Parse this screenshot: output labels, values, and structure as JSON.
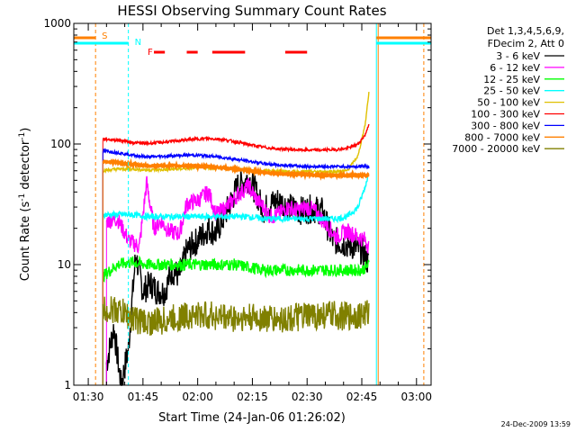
{
  "chart_data": {
    "type": "line",
    "title": "HESSI Observing Summary Count Rates",
    "xlabel": "Start Time (24-Jan-06 01:26:02)",
    "ylabel": "Count Rate (s",
    "ylabel_sup1": "-1",
    "ylabel_mid": " detector",
    "ylabel_sup2": "-1",
    "ylabel_end": ")",
    "yscale": "log",
    "ylim": [
      1,
      1000
    ],
    "xlim": [
      "01:26:02",
      "03:04:00"
    ],
    "xticks": [
      "01:30",
      "01:45",
      "02:00",
      "02:15",
      "02:30",
      "02:45",
      "03:00"
    ],
    "yticks": [
      "1",
      "10",
      "100",
      "1000"
    ],
    "grid": false,
    "legend_header": [
      "Det 1,3,4,5,6,9,",
      "FDecim 2, Att 0"
    ],
    "legend_position": "right",
    "footer_stamp": "24-Dec-2009 13:59",
    "flags": [
      {
        "label": "S",
        "color": "#ff8000",
        "time": "01:32"
      },
      {
        "label": "N",
        "color": "#00ffff",
        "time": "01:41"
      },
      {
        "label": "F",
        "color": "#ff0000",
        "time": "01:47"
      }
    ],
    "flare_intervals": [
      [
        "01:48",
        "01:51"
      ],
      [
        "01:57",
        "02:00"
      ],
      [
        "02:04",
        "02:13"
      ],
      [
        "02:24",
        "02:30"
      ]
    ],
    "series": [
      {
        "name": "3 - 6 keV",
        "color": "#000000",
        "points": [
          [
            "01:35",
            1.5
          ],
          [
            "01:37",
            3
          ],
          [
            "01:39",
            1.0
          ],
          [
            "01:41",
            2
          ],
          [
            "01:43",
            12
          ],
          [
            "01:45",
            6
          ],
          [
            "01:47",
            7
          ],
          [
            "01:49",
            6
          ],
          [
            "01:51",
            6
          ],
          [
            "01:53",
            9
          ],
          [
            "01:55",
            8
          ],
          [
            "01:57",
            13
          ],
          [
            "02:00",
            16
          ],
          [
            "02:03",
            20
          ],
          [
            "02:05",
            18
          ],
          [
            "02:08",
            28
          ],
          [
            "02:11",
            45
          ],
          [
            "02:14",
            52
          ],
          [
            "02:16",
            40
          ],
          [
            "02:18",
            28
          ],
          [
            "02:20",
            32
          ],
          [
            "02:22",
            34
          ],
          [
            "02:25",
            30
          ],
          [
            "02:28",
            28
          ],
          [
            "02:31",
            29
          ],
          [
            "02:34",
            28
          ],
          [
            "02:37",
            16
          ],
          [
            "02:40",
            15
          ],
          [
            "02:43",
            14
          ],
          [
            "02:45",
            13
          ],
          [
            "02:47",
            10
          ]
        ]
      },
      {
        "name": "6 - 12 keV",
        "color": "#ff00ff",
        "points": [
          [
            "01:35",
            23
          ],
          [
            "01:38",
            24
          ],
          [
            "01:41",
            16
          ],
          [
            "01:44",
            14
          ],
          [
            "01:46",
            48
          ],
          [
            "01:48",
            20
          ],
          [
            "01:50",
            23
          ],
          [
            "01:52",
            19
          ],
          [
            "01:55",
            18
          ],
          [
            "01:57",
            32
          ],
          [
            "02:00",
            34
          ],
          [
            "02:03",
            40
          ],
          [
            "02:05",
            26
          ],
          [
            "02:08",
            30
          ],
          [
            "02:11",
            38
          ],
          [
            "02:14",
            45
          ],
          [
            "02:16",
            35
          ],
          [
            "02:18",
            30
          ],
          [
            "02:20",
            25
          ],
          [
            "02:22",
            26
          ],
          [
            "02:25",
            30
          ],
          [
            "02:27",
            28
          ],
          [
            "02:30",
            30
          ],
          [
            "02:32",
            28
          ],
          [
            "02:35",
            22
          ],
          [
            "02:38",
            17
          ],
          [
            "02:41",
            19
          ],
          [
            "02:44",
            17
          ],
          [
            "02:46",
            16
          ],
          [
            "02:47",
            14
          ]
        ]
      },
      {
        "name": "12 - 25 keV",
        "color": "#00ff00",
        "points": [
          [
            "01:34",
            8
          ],
          [
            "01:38",
            10
          ],
          [
            "01:42",
            10.5
          ],
          [
            "01:46",
            10
          ],
          [
            "01:50",
            10
          ],
          [
            "01:54",
            10
          ],
          [
            "01:58",
            10
          ],
          [
            "02:02",
            10
          ],
          [
            "02:06",
            10
          ],
          [
            "02:10",
            10
          ],
          [
            "02:14",
            9.5
          ],
          [
            "02:18",
            9
          ],
          [
            "02:22",
            9
          ],
          [
            "02:26",
            9
          ],
          [
            "02:30",
            9
          ],
          [
            "02:34",
            9
          ],
          [
            "02:38",
            9
          ],
          [
            "02:42",
            9
          ],
          [
            "02:45",
            9
          ],
          [
            "02:47",
            10
          ]
        ]
      },
      {
        "name": "25 - 50 keV",
        "color": "#00ffff",
        "points": [
          [
            "01:34",
            26
          ],
          [
            "01:38",
            26
          ],
          [
            "01:42",
            26
          ],
          [
            "01:46",
            25
          ],
          [
            "01:50",
            25
          ],
          [
            "01:54",
            25
          ],
          [
            "01:58",
            25
          ],
          [
            "02:02",
            25
          ],
          [
            "02:06",
            25
          ],
          [
            "02:10",
            25
          ],
          [
            "02:14",
            25
          ],
          [
            "02:18",
            24
          ],
          [
            "02:22",
            24
          ],
          [
            "02:26",
            24
          ],
          [
            "02:30",
            24
          ],
          [
            "02:34",
            24
          ],
          [
            "02:38",
            24
          ],
          [
            "02:41",
            25
          ],
          [
            "02:44",
            30
          ],
          [
            "02:46",
            45
          ],
          [
            "02:47",
            60
          ]
        ]
      },
      {
        "name": "50 - 100 keV",
        "color": "#e0c000",
        "points": [
          [
            "01:34",
            60
          ],
          [
            "01:38",
            62
          ],
          [
            "01:42",
            62
          ],
          [
            "01:46",
            61
          ],
          [
            "01:50",
            61
          ],
          [
            "01:54",
            62
          ],
          [
            "01:58",
            63
          ],
          [
            "02:02",
            64
          ],
          [
            "02:06",
            63
          ],
          [
            "02:10",
            62
          ],
          [
            "02:14",
            61
          ],
          [
            "02:18",
            60
          ],
          [
            "02:22",
            60
          ],
          [
            "02:26",
            59
          ],
          [
            "02:30",
            59
          ],
          [
            "02:34",
            59
          ],
          [
            "02:38",
            59
          ],
          [
            "02:41",
            60
          ],
          [
            "02:44",
            80
          ],
          [
            "02:46",
            150
          ],
          [
            "02:47",
            280
          ]
        ]
      },
      {
        "name": "100 - 300 keV",
        "color": "#ff0000",
        "points": [
          [
            "01:34",
            110
          ],
          [
            "01:38",
            108
          ],
          [
            "01:42",
            103
          ],
          [
            "01:46",
            101
          ],
          [
            "01:50",
            103
          ],
          [
            "01:54",
            106
          ],
          [
            "01:58",
            109
          ],
          [
            "02:02",
            111
          ],
          [
            "02:06",
            110
          ],
          [
            "02:10",
            105
          ],
          [
            "02:14",
            99
          ],
          [
            "02:18",
            94
          ],
          [
            "02:22",
            91
          ],
          [
            "02:26",
            90
          ],
          [
            "02:30",
            89
          ],
          [
            "02:34",
            89
          ],
          [
            "02:38",
            90
          ],
          [
            "02:41",
            92
          ],
          [
            "02:44",
            100
          ],
          [
            "02:46",
            120
          ],
          [
            "02:47",
            150
          ]
        ]
      },
      {
        "name": "300 - 800 keV",
        "color": "#0000ff",
        "points": [
          [
            "01:34",
            88
          ],
          [
            "01:38",
            85
          ],
          [
            "01:42",
            81
          ],
          [
            "01:46",
            78
          ],
          [
            "01:50",
            79
          ],
          [
            "01:54",
            80
          ],
          [
            "01:58",
            81
          ],
          [
            "02:02",
            80
          ],
          [
            "02:06",
            78
          ],
          [
            "02:10",
            75
          ],
          [
            "02:14",
            72
          ],
          [
            "02:18",
            69
          ],
          [
            "02:22",
            67
          ],
          [
            "02:26",
            66
          ],
          [
            "02:30",
            65
          ],
          [
            "02:34",
            65
          ],
          [
            "02:38",
            65
          ],
          [
            "02:41",
            65
          ],
          [
            "02:44",
            65
          ],
          [
            "02:46",
            66
          ],
          [
            "02:47",
            64
          ]
        ]
      },
      {
        "name": "800 - 7000 keV",
        "color": "#ff8000",
        "points": [
          [
            "01:34",
            72
          ],
          [
            "01:38",
            70
          ],
          [
            "01:42",
            68
          ],
          [
            "01:46",
            66
          ],
          [
            "01:50",
            66
          ],
          [
            "01:54",
            66
          ],
          [
            "01:58",
            66
          ],
          [
            "02:02",
            65
          ],
          [
            "02:06",
            64
          ],
          [
            "02:10",
            62
          ],
          [
            "02:14",
            60
          ],
          [
            "02:18",
            58
          ],
          [
            "02:22",
            57
          ],
          [
            "02:26",
            56
          ],
          [
            "02:30",
            56
          ],
          [
            "02:34",
            55
          ],
          [
            "02:38",
            55
          ],
          [
            "02:41",
            55
          ],
          [
            "02:44",
            55
          ],
          [
            "02:46",
            55
          ],
          [
            "02:47",
            55
          ]
        ]
      },
      {
        "name": "7000 - 20000 keV",
        "color": "#808000",
        "points": [
          [
            "01:34",
            4.2
          ],
          [
            "01:38",
            4.2
          ],
          [
            "01:42",
            3.6
          ],
          [
            "01:46",
            3.3
          ],
          [
            "01:50",
            3.4
          ],
          [
            "01:54",
            3.6
          ],
          [
            "01:58",
            3.8
          ],
          [
            "02:02",
            3.8
          ],
          [
            "02:06",
            3.7
          ],
          [
            "02:10",
            3.6
          ],
          [
            "02:14",
            3.6
          ],
          [
            "02:18",
            3.6
          ],
          [
            "02:22",
            3.5
          ],
          [
            "02:26",
            3.6
          ],
          [
            "02:30",
            3.7
          ],
          [
            "02:34",
            3.8
          ],
          [
            "02:38",
            3.8
          ],
          [
            "02:41",
            3.7
          ],
          [
            "02:44",
            3.8
          ],
          [
            "02:46",
            3.9
          ],
          [
            "02:47",
            4.0
          ]
        ]
      }
    ]
  }
}
